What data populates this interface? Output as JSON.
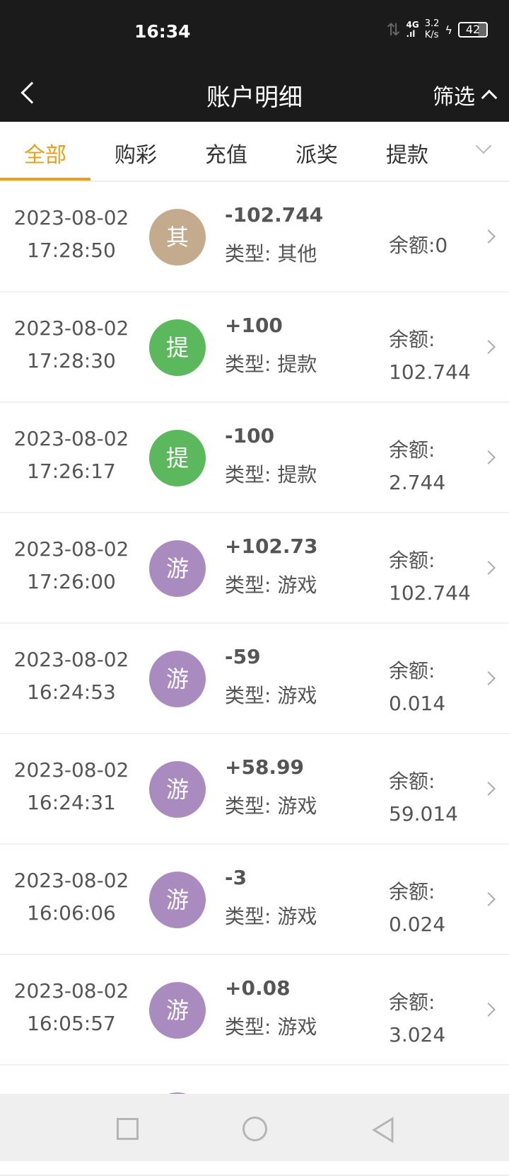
{
  "status_bar": {
    "time": "16:34",
    "network": "4G",
    "speed": "3.2",
    "speed_unit": "K/s",
    "battery": "42"
  },
  "header": {
    "title": "账户明细",
    "filter": "筛选"
  },
  "tabs": [
    {
      "label": "全部",
      "active": true
    },
    {
      "label": "购彩"
    },
    {
      "label": "充值"
    },
    {
      "label": "派奖"
    },
    {
      "label": "提款"
    }
  ],
  "colors": {
    "accent": "#e4a11b",
    "other": "#c4ab8d",
    "withdraw": "#5cb85c",
    "game": "#a98bbf"
  },
  "rows": [
    {
      "date": "2023-08-02",
      "time": "17:28:50",
      "badge": "其",
      "kind": "other",
      "amount": "-102.744",
      "type": "类型: 其他",
      "balance_label": "余额:0",
      "balance": ""
    },
    {
      "date": "2023-08-02",
      "time": "17:28:30",
      "badge": "提",
      "kind": "withdraw",
      "amount": "+100",
      "type": "类型: 提款",
      "balance_label": "余额:",
      "balance": "102.744"
    },
    {
      "date": "2023-08-02",
      "time": "17:26:17",
      "badge": "提",
      "kind": "withdraw",
      "amount": "-100",
      "type": "类型: 提款",
      "balance_label": "余额:",
      "balance": "2.744"
    },
    {
      "date": "2023-08-02",
      "time": "17:26:00",
      "badge": "游",
      "kind": "game",
      "amount": "+102.73",
      "type": "类型: 游戏",
      "balance_label": "余额:",
      "balance": "102.744"
    },
    {
      "date": "2023-08-02",
      "time": "16:24:53",
      "badge": "游",
      "kind": "game",
      "amount": "-59",
      "type": "类型: 游戏",
      "balance_label": "余额:",
      "balance": "0.014"
    },
    {
      "date": "2023-08-02",
      "time": "16:24:31",
      "badge": "游",
      "kind": "game",
      "amount": "+58.99",
      "type": "类型: 游戏",
      "balance_label": "余额:",
      "balance": "59.014"
    },
    {
      "date": "2023-08-02",
      "time": "16:06:06",
      "badge": "游",
      "kind": "game",
      "amount": "-3",
      "type": "类型: 游戏",
      "balance_label": "余额:",
      "balance": "0.024"
    },
    {
      "date": "2023-08-02",
      "time": "16:05:57",
      "badge": "游",
      "kind": "game",
      "amount": "+0.08",
      "type": "类型: 游戏",
      "balance_label": "余额:",
      "balance": "3.024"
    }
  ]
}
